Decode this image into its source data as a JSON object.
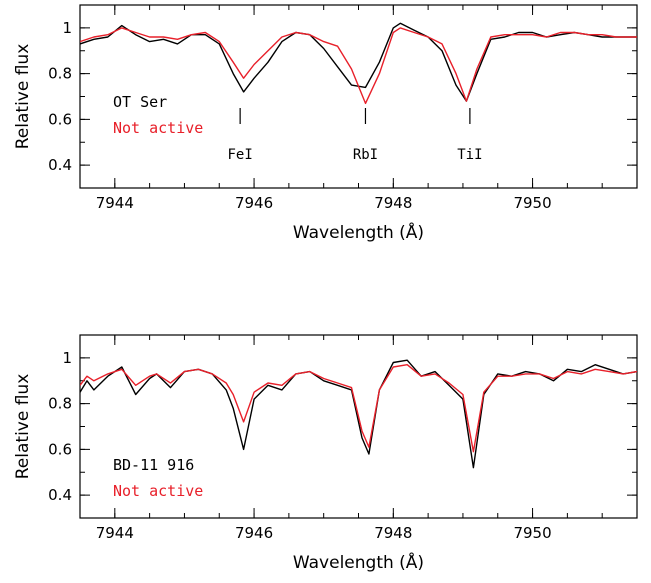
{
  "chart_data": [
    {
      "type": "line",
      "xlabel": "Wavelength (Å)",
      "ylabel": "Relative flux",
      "xlim": [
        7943.5,
        7951.5
      ],
      "ylim": [
        0.3,
        1.1
      ],
      "xticks": [
        7944,
        7946,
        7948,
        7950
      ],
      "xtick_labels": [
        "7944",
        "7946",
        "7948",
        "7950"
      ],
      "yticks": [
        0.4,
        0.6,
        0.8,
        1.0
      ],
      "ytick_labels": [
        "0.4",
        "0.6",
        "0.8",
        "1"
      ],
      "legend_position": "middle-left",
      "legend": [
        {
          "label": "OT Ser",
          "color": "#000000"
        },
        {
          "label": "Not active",
          "color": "#e8202a"
        }
      ],
      "annotations": [
        {
          "label": "FeI",
          "x": 7945.8
        },
        {
          "label": "RbI",
          "x": 7947.6
        },
        {
          "label": "TiI",
          "x": 7949.1
        }
      ],
      "series": [
        {
          "color": "#000000",
          "x": [
            7943.5,
            7943.7,
            7943.9,
            7944.1,
            7944.3,
            7944.5,
            7944.7,
            7944.9,
            7945.1,
            7945.3,
            7945.5,
            7945.7,
            7945.85,
            7946.0,
            7946.2,
            7946.4,
            7946.6,
            7946.8,
            7947.0,
            7947.2,
            7947.4,
            7947.6,
            7947.8,
            7948.0,
            7948.1,
            7948.3,
            7948.5,
            7948.7,
            7948.9,
            7949.05,
            7949.2,
            7949.4,
            7949.6,
            7949.8,
            7950.0,
            7950.2,
            7950.4,
            7950.6,
            7950.8,
            7951.0,
            7951.2,
            7951.5
          ],
          "values": [
            0.93,
            0.95,
            0.96,
            1.01,
            0.97,
            0.94,
            0.95,
            0.93,
            0.97,
            0.97,
            0.93,
            0.8,
            0.72,
            0.78,
            0.85,
            0.94,
            0.98,
            0.97,
            0.91,
            0.83,
            0.75,
            0.74,
            0.85,
            1.0,
            1.02,
            0.99,
            0.96,
            0.9,
            0.75,
            0.68,
            0.8,
            0.95,
            0.96,
            0.98,
            0.98,
            0.96,
            0.97,
            0.98,
            0.97,
            0.96,
            0.96,
            0.96
          ]
        },
        {
          "color": "#e8202a",
          "x": [
            7943.5,
            7943.7,
            7943.9,
            7944.1,
            7944.3,
            7944.5,
            7944.7,
            7944.9,
            7945.1,
            7945.3,
            7945.5,
            7945.7,
            7945.85,
            7946.0,
            7946.2,
            7946.4,
            7946.6,
            7946.8,
            7947.0,
            7947.2,
            7947.4,
            7947.6,
            7947.8,
            7948.0,
            7948.1,
            7948.3,
            7948.5,
            7948.7,
            7948.9,
            7949.05,
            7949.2,
            7949.4,
            7949.6,
            7949.8,
            7950.0,
            7950.2,
            7950.4,
            7950.6,
            7950.8,
            7951.0,
            7951.2,
            7951.5
          ],
          "values": [
            0.94,
            0.96,
            0.97,
            1.0,
            0.98,
            0.96,
            0.96,
            0.95,
            0.97,
            0.98,
            0.94,
            0.85,
            0.78,
            0.84,
            0.9,
            0.96,
            0.98,
            0.97,
            0.94,
            0.92,
            0.82,
            0.67,
            0.8,
            0.98,
            1.0,
            0.98,
            0.96,
            0.93,
            0.8,
            0.68,
            0.82,
            0.96,
            0.97,
            0.97,
            0.97,
            0.96,
            0.98,
            0.98,
            0.97,
            0.97,
            0.96,
            0.96
          ]
        }
      ]
    },
    {
      "type": "line",
      "xlabel": "Wavelength (Å)",
      "ylabel": "Relative flux",
      "xlim": [
        7943.5,
        7951.5
      ],
      "ylim": [
        0.3,
        1.1
      ],
      "xticks": [
        7944,
        7946,
        7948,
        7950
      ],
      "xtick_labels": [
        "7944",
        "7946",
        "7948",
        "7950"
      ],
      "yticks": [
        0.4,
        0.6,
        0.8,
        1.0
      ],
      "ytick_labels": [
        "0.4",
        "0.6",
        "0.8",
        "1"
      ],
      "legend_position": "bottom-left",
      "legend": [
        {
          "label": "BD-11 916",
          "color": "#000000"
        },
        {
          "label": "Not active",
          "color": "#e8202a"
        }
      ],
      "annotations": [],
      "series": [
        {
          "color": "#000000",
          "x": [
            7943.5,
            7943.6,
            7943.7,
            7943.9,
            7944.1,
            7944.3,
            7944.5,
            7944.6,
            7944.8,
            7945.0,
            7945.2,
            7945.4,
            7945.6,
            7945.7,
            7945.85,
            7946.0,
            7946.2,
            7946.4,
            7946.6,
            7946.8,
            7947.0,
            7947.2,
            7947.4,
            7947.55,
            7947.65,
            7947.8,
            7948.0,
            7948.2,
            7948.4,
            7948.6,
            7948.8,
            7949.0,
            7949.15,
            7949.3,
            7949.5,
            7949.7,
            7949.9,
            7950.1,
            7950.3,
            7950.5,
            7950.7,
            7950.9,
            7951.1,
            7951.3,
            7951.5
          ],
          "values": [
            0.85,
            0.9,
            0.86,
            0.92,
            0.96,
            0.84,
            0.91,
            0.93,
            0.87,
            0.94,
            0.95,
            0.93,
            0.86,
            0.78,
            0.6,
            0.82,
            0.88,
            0.86,
            0.93,
            0.94,
            0.9,
            0.88,
            0.86,
            0.65,
            0.58,
            0.86,
            0.98,
            0.99,
            0.92,
            0.94,
            0.88,
            0.82,
            0.52,
            0.84,
            0.93,
            0.92,
            0.94,
            0.93,
            0.9,
            0.95,
            0.94,
            0.97,
            0.95,
            0.93,
            0.94
          ]
        },
        {
          "color": "#e8202a",
          "x": [
            7943.5,
            7943.6,
            7943.7,
            7943.9,
            7944.1,
            7944.3,
            7944.5,
            7944.6,
            7944.8,
            7945.0,
            7945.2,
            7945.4,
            7945.6,
            7945.7,
            7945.85,
            7946.0,
            7946.2,
            7946.4,
            7946.6,
            7946.8,
            7947.0,
            7947.2,
            7947.4,
            7947.55,
            7947.65,
            7947.8,
            7948.0,
            7948.2,
            7948.4,
            7948.6,
            7948.8,
            7949.0,
            7949.15,
            7949.3,
            7949.5,
            7949.7,
            7949.9,
            7950.1,
            7950.3,
            7950.5,
            7950.7,
            7950.9,
            7951.1,
            7951.3,
            7951.5
          ],
          "values": [
            0.88,
            0.92,
            0.9,
            0.93,
            0.95,
            0.88,
            0.92,
            0.93,
            0.89,
            0.94,
            0.95,
            0.93,
            0.89,
            0.84,
            0.72,
            0.85,
            0.89,
            0.88,
            0.93,
            0.94,
            0.91,
            0.89,
            0.87,
            0.68,
            0.61,
            0.86,
            0.96,
            0.97,
            0.92,
            0.93,
            0.89,
            0.84,
            0.59,
            0.85,
            0.92,
            0.92,
            0.93,
            0.93,
            0.91,
            0.94,
            0.93,
            0.95,
            0.94,
            0.93,
            0.94
          ]
        }
      ]
    }
  ]
}
